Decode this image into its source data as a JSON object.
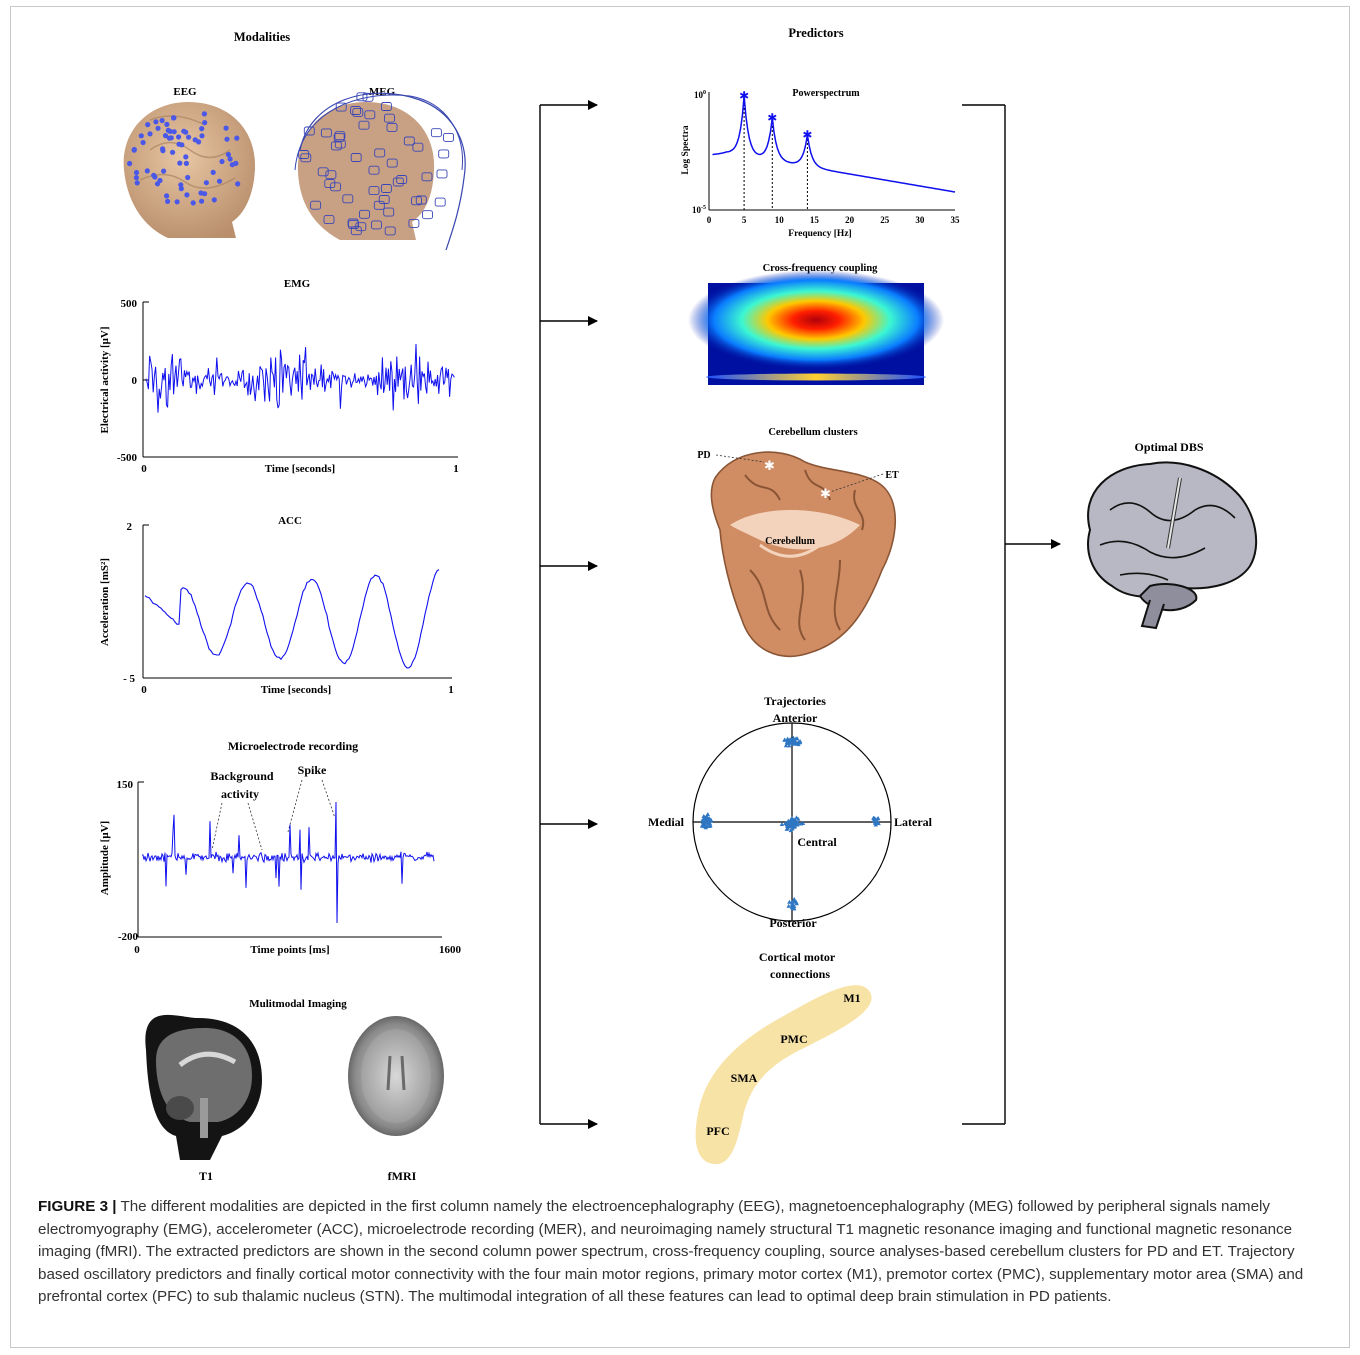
{
  "headers": {
    "modalities": "Modalities",
    "predictors": "Predictors"
  },
  "modalities": {
    "eeg": "EEG",
    "meg": "MEG",
    "emg": {
      "title": "EMG",
      "ylabel": "Electrical activity [μV]",
      "xlabel": "Time [seconds]",
      "yticks": [
        "500",
        "0",
        "-500"
      ],
      "xticks": [
        "0",
        "1"
      ]
    },
    "acc": {
      "title": "ACC",
      "ylabel": "Acceleration [mS²]",
      "xlabel": "Time [seconds]",
      "yticks": [
        "2",
        "- 5"
      ],
      "xticks": [
        "0",
        "1"
      ]
    },
    "mer": {
      "title": "Microelectrode recording",
      "ylabel": "Amplitude [μV]",
      "xlabel": "Time points [ms]",
      "yticks": [
        "150",
        "-200"
      ],
      "xticks": [
        "0",
        "1600"
      ],
      "annot_bg_line1": "Background",
      "annot_bg_line2": "activity",
      "annot_spike": "Spike"
    },
    "imaging": {
      "title": "Mulitmodal Imaging",
      "t1": "T1",
      "fmri": "fMRI"
    }
  },
  "predictors": {
    "power": {
      "title": "Powerspectrum",
      "ylabel": "Log Spectra",
      "xlabel": "Frequency [Hz]",
      "ytick_top": "10",
      "ytick_top_exp": "0",
      "ytick_bottom": "10",
      "ytick_bottom_exp": "-5",
      "xticks": [
        "0",
        "5",
        "10",
        "15",
        "20",
        "25",
        "30",
        "35"
      ]
    },
    "cfc": {
      "title": "Cross-frequency coupling"
    },
    "cerebellum": {
      "title": "Cerebellum clusters",
      "pd": "PD",
      "et": "ET",
      "label": "Cerebellum"
    },
    "trajectories": {
      "title": "Trajectories",
      "anterior": "Anterior",
      "posterior": "Posterior",
      "medial": "Medial",
      "lateral": "Lateral",
      "central": "Central"
    },
    "cortical": {
      "title_line1": "Cortical motor",
      "title_line2": "connections",
      "m1": "M1",
      "pmc": "PMC",
      "sma": "SMA",
      "pfc": "PFC"
    }
  },
  "output": {
    "title": "Optimal DBS"
  },
  "caption": {
    "label": "FIGURE 3 |",
    "text": " The different modalities are depicted in the first column namely the electroencephalography (EEG), magnetoencephalography (MEG) followed by peripheral signals namely electromyography (EMG), accelerometer (ACC), microelectrode recording (MER), and neuroimaging namely structural T1 magnetic resonance imaging and functional magnetic resonance imaging (fMRI). The extracted predictors are shown in the second column power spectrum, cross-frequency coupling, source analyses-based cerebellum clusters for PD and ET. Trajectory based oscillatory predictors and finally cortical motor connectivity with the four main motor regions, primary motor cortex (M1), premotor cortex (PMC), supplementary motor area (SMA) and prefrontal cortex (PFC) to sub thalamic nucleus (STN). The multimodal integration of all these features can lead to optimal deep brain stimulation in PD patients."
  },
  "colors": {
    "signal": "#1010ee",
    "scatter": "#2f77c3",
    "cortical_band": "#f8e3a6",
    "cerebellum": "#d08d64",
    "brain": "#b8b8c4"
  }
}
